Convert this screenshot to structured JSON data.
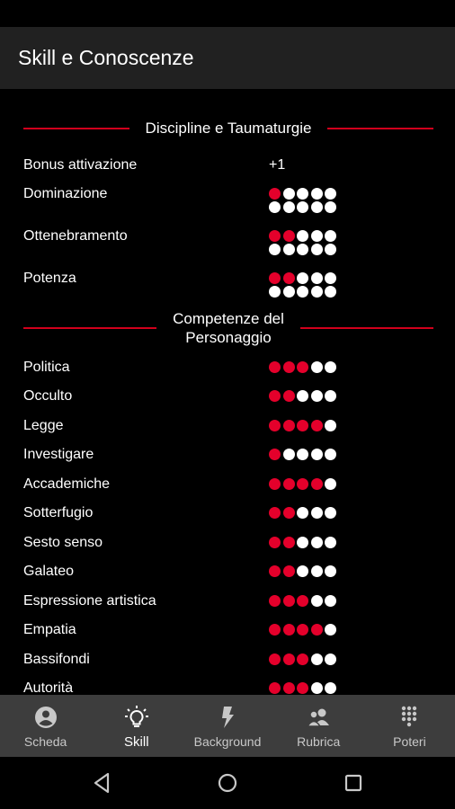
{
  "app": {
    "title": "Skill e Conoscenze"
  },
  "sections": {
    "discipline": {
      "title": "Discipline e Taumaturgie",
      "bonus": {
        "label": "Bonus attivazione",
        "value": "+1"
      },
      "items": [
        {
          "label": "Dominazione",
          "level": 1,
          "max": 10
        },
        {
          "label": "Ottenebramento",
          "level": 2,
          "max": 10
        },
        {
          "label": "Potenza",
          "level": 2,
          "max": 10
        }
      ]
    },
    "competenze": {
      "title_line1": "Competenze del",
      "title_line2": "Personaggio",
      "items": [
        {
          "label": "Politica",
          "level": 3,
          "max": 5
        },
        {
          "label": "Occulto",
          "level": 2,
          "max": 5
        },
        {
          "label": "Legge",
          "level": 4,
          "max": 5
        },
        {
          "label": "Investigare",
          "level": 1,
          "max": 5
        },
        {
          "label": "Accademiche",
          "level": 4,
          "max": 5
        },
        {
          "label": "Sotterfugio",
          "level": 2,
          "max": 5
        },
        {
          "label": "Sesto senso",
          "level": 2,
          "max": 5
        },
        {
          "label": "Galateo",
          "level": 2,
          "max": 5
        },
        {
          "label": "Espressione artistica",
          "level": 3,
          "max": 5
        },
        {
          "label": "Empatia",
          "level": 4,
          "max": 5
        },
        {
          "label": "Bassifondi",
          "level": 3,
          "max": 5
        },
        {
          "label": "Autorità",
          "level": 3,
          "max": 5
        }
      ]
    }
  },
  "colors": {
    "filled_dot": "#e4002b",
    "empty_dot": "#ffffff",
    "accent_line": "#d1001c"
  },
  "nav": {
    "items": [
      {
        "label": "Scheda",
        "icon": "account-circle-icon",
        "active": false
      },
      {
        "label": "Skill",
        "icon": "lightbulb-icon",
        "active": true
      },
      {
        "label": "Background",
        "icon": "lightning-bolt-icon",
        "active": false
      },
      {
        "label": "Rubrica",
        "icon": "contacts-group-icon",
        "active": false
      },
      {
        "label": "Poteri",
        "icon": "dial-grid-icon",
        "active": false
      }
    ]
  },
  "system_nav": {
    "icons": [
      "back-triangle-icon",
      "home-circle-icon",
      "recents-square-icon"
    ]
  }
}
